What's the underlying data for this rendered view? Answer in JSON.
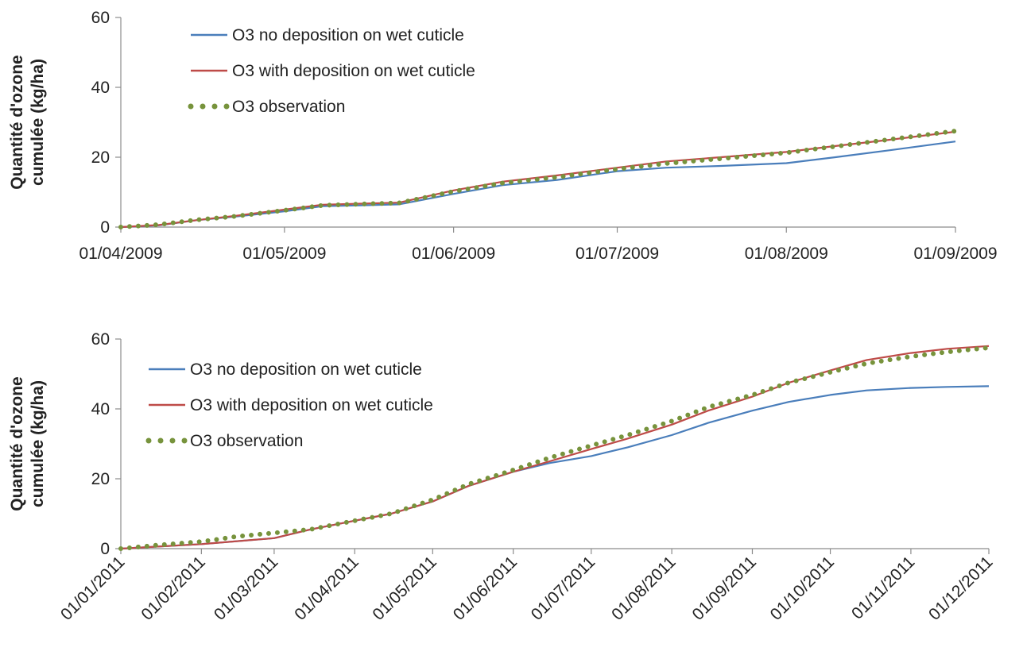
{
  "colors": {
    "no_deposition": "#4a7ebb",
    "with_deposition": "#be4b48",
    "observation": "#77933c",
    "axis": "#8c8c8c"
  },
  "chart_data": [
    {
      "type": "line",
      "title": "",
      "xlabel": "",
      "ylabel": [
        "Quantité d'ozone",
        "cumulée (kg/ha)"
      ],
      "x_axis": {
        "start": "2009-04-01",
        "end": "2009-09-01",
        "tick_labels": [
          "01/04/2009",
          "01/05/2009",
          "01/06/2009",
          "01/07/2009",
          "01/08/2009",
          "01/09/2009"
        ],
        "tick_dates": [
          "2009-04-01",
          "2009-05-01",
          "2009-06-01",
          "2009-07-01",
          "2009-08-01",
          "2009-09-01"
        ],
        "tick_label_rotation": 0
      },
      "ylim": [
        0,
        60
      ],
      "y_ticks": [
        0,
        20,
        40,
        60
      ],
      "grid": false,
      "legend_position": "top-left",
      "series": [
        {
          "name": "O3 no deposition on wet cuticle",
          "style": "line",
          "color_key": "no_deposition",
          "points": [
            [
              "2009-04-01",
              0
            ],
            [
              "2009-04-08",
              0.5
            ],
            [
              "2009-04-15",
              2
            ],
            [
              "2009-04-22",
              3
            ],
            [
              "2009-05-01",
              4.5
            ],
            [
              "2009-05-08",
              6
            ],
            [
              "2009-05-15",
              6.2
            ],
            [
              "2009-05-22",
              6.5
            ],
            [
              "2009-06-01",
              9.5
            ],
            [
              "2009-06-10",
              12
            ],
            [
              "2009-06-20",
              13.5
            ],
            [
              "2009-07-01",
              16
            ],
            [
              "2009-07-10",
              17
            ],
            [
              "2009-07-20",
              17.5
            ],
            [
              "2009-08-01",
              18.3
            ],
            [
              "2009-08-10",
              20
            ],
            [
              "2009-08-20",
              22
            ],
            [
              "2009-09-01",
              24.5
            ]
          ]
        },
        {
          "name": "O3 with deposition on wet cuticle",
          "style": "line",
          "color_key": "with_deposition",
          "points": [
            [
              "2009-04-01",
              0
            ],
            [
              "2009-04-08",
              0.6
            ],
            [
              "2009-04-15",
              2
            ],
            [
              "2009-04-22",
              3.2
            ],
            [
              "2009-05-01",
              5
            ],
            [
              "2009-05-08",
              6.4
            ],
            [
              "2009-05-15",
              6.7
            ],
            [
              "2009-05-22",
              7
            ],
            [
              "2009-06-01",
              10.5
            ],
            [
              "2009-06-10",
              13
            ],
            [
              "2009-06-20",
              14.8
            ],
            [
              "2009-07-01",
              17
            ],
            [
              "2009-07-10",
              18.8
            ],
            [
              "2009-07-20",
              20
            ],
            [
              "2009-08-01",
              21.5
            ],
            [
              "2009-08-10",
              23.2
            ],
            [
              "2009-08-20",
              25
            ],
            [
              "2009-09-01",
              27.3
            ]
          ]
        },
        {
          "name": "O3 observation",
          "style": "dots",
          "color_key": "observation",
          "points": [
            [
              "2009-04-01",
              0
            ],
            [
              "2009-04-08",
              0.7
            ],
            [
              "2009-04-15",
              2.1
            ],
            [
              "2009-04-22",
              3.1
            ],
            [
              "2009-05-01",
              4.8
            ],
            [
              "2009-05-08",
              6.2
            ],
            [
              "2009-05-15",
              6.6
            ],
            [
              "2009-05-22",
              6.9
            ],
            [
              "2009-06-01",
              10.2
            ],
            [
              "2009-06-10",
              12.6
            ],
            [
              "2009-06-20",
              14.3
            ],
            [
              "2009-07-01",
              16.6
            ],
            [
              "2009-07-10",
              18.2
            ],
            [
              "2009-07-20",
              19.6
            ],
            [
              "2009-08-01",
              21.3
            ],
            [
              "2009-08-10",
              23.1
            ],
            [
              "2009-08-20",
              25.1
            ],
            [
              "2009-09-01",
              27.5
            ]
          ]
        }
      ]
    },
    {
      "type": "line",
      "title": "",
      "xlabel": "",
      "ylabel": [
        "Quantité d'ozone",
        "cumulée (kg/ha)"
      ],
      "x_axis": {
        "start": "2011-01-01",
        "end": "2011-12-01",
        "tick_labels": [
          "01/01/2011",
          "01/02/2011",
          "01/03/2011",
          "01/04/2011",
          "01/05/2011",
          "01/06/2011",
          "01/07/2011",
          "01/08/2011",
          "01/09/2011",
          "01/10/2011",
          "01/11/2011",
          "01/12/2011"
        ],
        "tick_dates": [
          "2011-01-01",
          "2011-02-01",
          "2011-03-01",
          "2011-04-01",
          "2011-05-01",
          "2011-06-01",
          "2011-07-01",
          "2011-08-01",
          "2011-09-01",
          "2011-10-01",
          "2011-11-01",
          "2011-12-01"
        ],
        "tick_label_rotation": -45
      },
      "ylim": [
        0,
        60
      ],
      "y_ticks": [
        0,
        20,
        40,
        60
      ],
      "grid": false,
      "legend_position": "top-left",
      "series": [
        {
          "name": "O3 no deposition on wet cuticle",
          "style": "line",
          "color_key": "no_deposition",
          "points": [
            [
              "2011-01-01",
              0
            ],
            [
              "2011-02-01",
              1.3
            ],
            [
              "2011-03-01",
              3
            ],
            [
              "2011-03-15",
              5.5
            ],
            [
              "2011-04-01",
              8
            ],
            [
              "2011-04-15",
              10
            ],
            [
              "2011-05-01",
              13.5
            ],
            [
              "2011-05-15",
              18
            ],
            [
              "2011-06-01",
              22
            ],
            [
              "2011-06-15",
              24.5
            ],
            [
              "2011-07-01",
              26.5
            ],
            [
              "2011-07-15",
              29
            ],
            [
              "2011-08-01",
              32.5
            ],
            [
              "2011-08-15",
              36
            ],
            [
              "2011-09-01",
              39.5
            ],
            [
              "2011-09-15",
              42
            ],
            [
              "2011-10-01",
              44
            ],
            [
              "2011-10-15",
              45.3
            ],
            [
              "2011-11-01",
              46
            ],
            [
              "2011-11-15",
              46.3
            ],
            [
              "2011-12-01",
              46.5
            ]
          ]
        },
        {
          "name": "O3 with deposition on wet cuticle",
          "style": "line",
          "color_key": "with_deposition",
          "points": [
            [
              "2011-01-01",
              0
            ],
            [
              "2011-02-01",
              1.3
            ],
            [
              "2011-03-01",
              3
            ],
            [
              "2011-03-15",
              5.5
            ],
            [
              "2011-04-01",
              8
            ],
            [
              "2011-04-15",
              10
            ],
            [
              "2011-05-01",
              13.5
            ],
            [
              "2011-05-15",
              18
            ],
            [
              "2011-06-01",
              22
            ],
            [
              "2011-06-15",
              25
            ],
            [
              "2011-07-01",
              28.5
            ],
            [
              "2011-07-15",
              31.5
            ],
            [
              "2011-08-01",
              35.5
            ],
            [
              "2011-08-15",
              39.5
            ],
            [
              "2011-09-01",
              43.5
            ],
            [
              "2011-09-15",
              47.5
            ],
            [
              "2011-10-01",
              51
            ],
            [
              "2011-10-15",
              54
            ],
            [
              "2011-11-01",
              56
            ],
            [
              "2011-11-15",
              57.2
            ],
            [
              "2011-12-01",
              58
            ]
          ]
        },
        {
          "name": "O3 observation",
          "style": "dots",
          "color_key": "observation",
          "points": [
            [
              "2011-01-01",
              0
            ],
            [
              "2011-01-15",
              1
            ],
            [
              "2011-02-01",
              2
            ],
            [
              "2011-02-15",
              3.5
            ],
            [
              "2011-03-01",
              4.5
            ],
            [
              "2011-03-15",
              5.5
            ],
            [
              "2011-04-01",
              8
            ],
            [
              "2011-04-15",
              10
            ],
            [
              "2011-05-01",
              14
            ],
            [
              "2011-05-15",
              18.5
            ],
            [
              "2011-06-01",
              22.5
            ],
            [
              "2011-06-15",
              26
            ],
            [
              "2011-07-01",
              29.5
            ],
            [
              "2011-07-15",
              32.5
            ],
            [
              "2011-08-01",
              36.5
            ],
            [
              "2011-08-15",
              40.5
            ],
            [
              "2011-09-01",
              44
            ],
            [
              "2011-09-15",
              47.5
            ],
            [
              "2011-10-01",
              50.5
            ],
            [
              "2011-10-15",
              53
            ],
            [
              "2011-11-01",
              55
            ],
            [
              "2011-11-15",
              56.3
            ],
            [
              "2011-12-01",
              57.5
            ]
          ]
        }
      ]
    }
  ]
}
